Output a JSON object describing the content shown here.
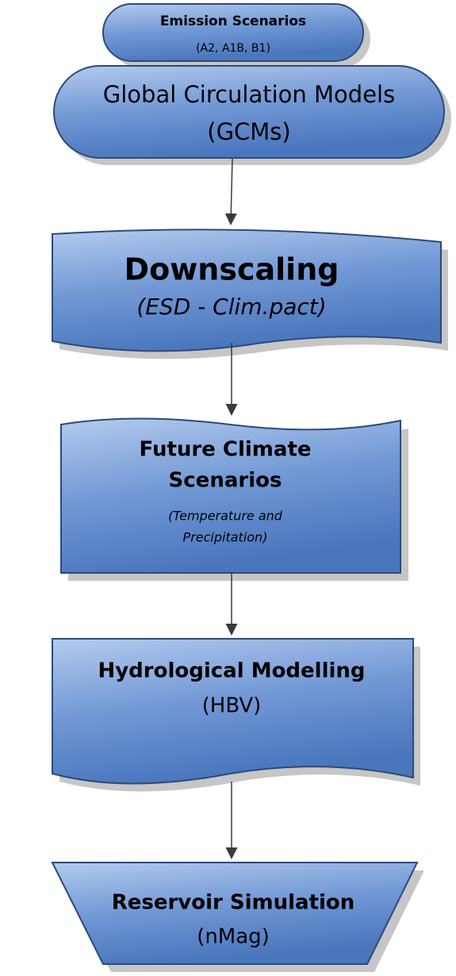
{
  "nodes": [
    {
      "title": "Emission Scenarios",
      "subtitle": "(A2, A1B, B1)"
    },
    {
      "title": "Global Circulation Models",
      "subtitle": "(GCMs)"
    },
    {
      "title": "Downscaling",
      "subtitle": "(ESD - Clim.pact)"
    },
    {
      "title": "Future Climate",
      "title2": "Scenarios",
      "subtitle": "(Temperature and",
      "subtitle2": "Precipitation)"
    },
    {
      "title": "Hydrological Modelling",
      "subtitle": "(HBV)"
    },
    {
      "title": "Reservoir Simulation",
      "subtitle": "(nMag)"
    }
  ]
}
